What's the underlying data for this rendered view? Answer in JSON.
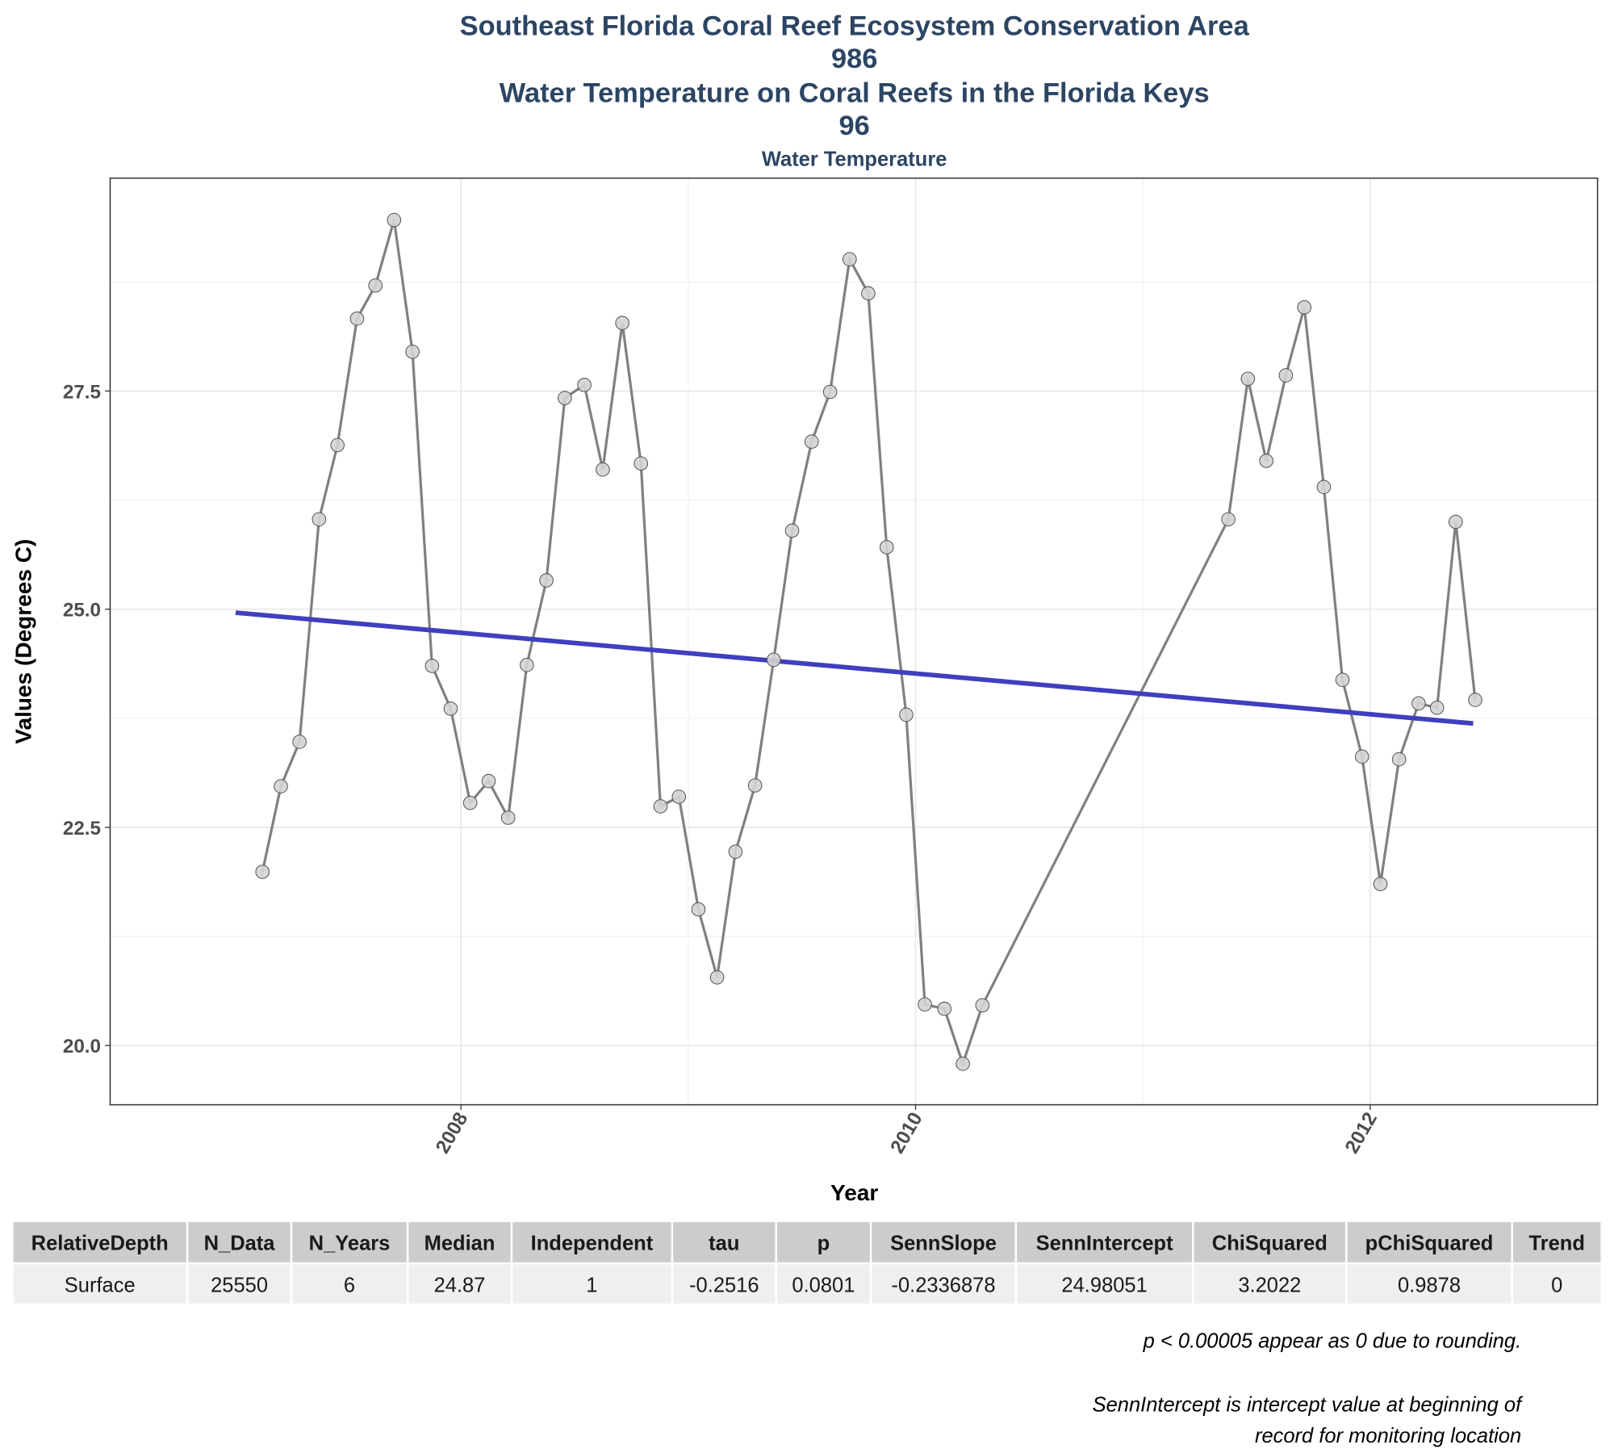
{
  "chart_data": {
    "type": "line",
    "title": [
      "Southeast Florida Coral Reef Ecosystem Conservation Area",
      "986",
      "Water Temperature on Coral Reefs in the Florida Keys",
      "96"
    ],
    "subtitle": "Water Temperature",
    "x_label": "Year",
    "y_label": "Values (Degrees C)",
    "x": [
      2007.127,
      2007.208,
      2007.29,
      2007.376,
      2007.457,
      2007.543,
      2007.624,
      2007.706,
      2007.787,
      2007.873,
      2007.955,
      2008.041,
      2008.122,
      2008.208,
      2008.29,
      2008.376,
      2008.457,
      2008.543,
      2008.624,
      2008.71,
      2008.792,
      2008.878,
      2008.959,
      2009.045,
      2009.127,
      2009.208,
      2009.294,
      2009.376,
      2009.457,
      2009.543,
      2009.624,
      2009.71,
      2009.792,
      2009.873,
      2009.959,
      2010.041,
      2010.127,
      2010.208,
      2010.294,
      2011.376,
      2011.462,
      2011.543,
      2011.629,
      2011.71,
      2011.796,
      2011.878,
      2011.964,
      2012.045,
      2012.127,
      2012.213,
      2012.294,
      2012.376,
      2012.462
    ],
    "values": [
      21.99,
      22.97,
      23.48,
      26.03,
      26.88,
      28.33,
      28.71,
      29.46,
      27.95,
      24.35,
      23.86,
      22.78,
      23.03,
      22.61,
      24.36,
      25.33,
      27.42,
      27.57,
      26.6,
      28.28,
      26.67,
      22.74,
      22.85,
      21.56,
      20.78,
      22.22,
      22.98,
      24.42,
      25.9,
      26.92,
      27.49,
      29.01,
      28.62,
      25.71,
      23.79,
      20.47,
      20.42,
      19.79,
      20.46,
      26.03,
      27.64,
      26.7,
      27.68,
      28.46,
      26.4,
      24.19,
      23.31,
      21.85,
      23.28,
      23.92,
      23.87,
      26.0,
      23.96
    ],
    "color": "#808080",
    "point_color": "#d3d3d3",
    "trend": {
      "x": [
        2007.009,
        2012.453
      ],
      "values": [
        24.96,
        23.69
      ],
      "color": "#3f3fbf"
    },
    "xlim": [
      2006.457,
      2013.0
    ],
    "ylim": [
      19.32,
      29.94
    ],
    "xticks": [
      2008,
      2010,
      2012
    ],
    "yticks": [
      {
        "value": 20,
        "label": "20.0"
      },
      22.5,
      {
        "value": 25,
        "label": "25.0"
      },
      27.5
    ],
    "minor_xticks": [
      2009,
      2011
    ],
    "minor_yticks": [
      21.25,
      23.75,
      26.25,
      28.75
    ],
    "grid": true
  },
  "table": {
    "columns": [
      "RelativeDepth",
      "N_Data",
      "N_Years",
      "Median",
      "Independent",
      "tau",
      "p",
      "SennSlope",
      "SennIntercept",
      "ChiSquared",
      "pChiSquared",
      "Trend"
    ],
    "rows": [
      [
        "Surface",
        25550,
        6,
        24.87,
        1,
        -0.2516,
        0.0801,
        -0.2336878,
        24.98051,
        3.2022,
        0.9878,
        0
      ]
    ]
  },
  "notes": [
    "p < 0.00005 appear as 0 due to rounding.",
    "SennIntercept is intercept value at beginning of",
    "record for monitoring location"
  ]
}
